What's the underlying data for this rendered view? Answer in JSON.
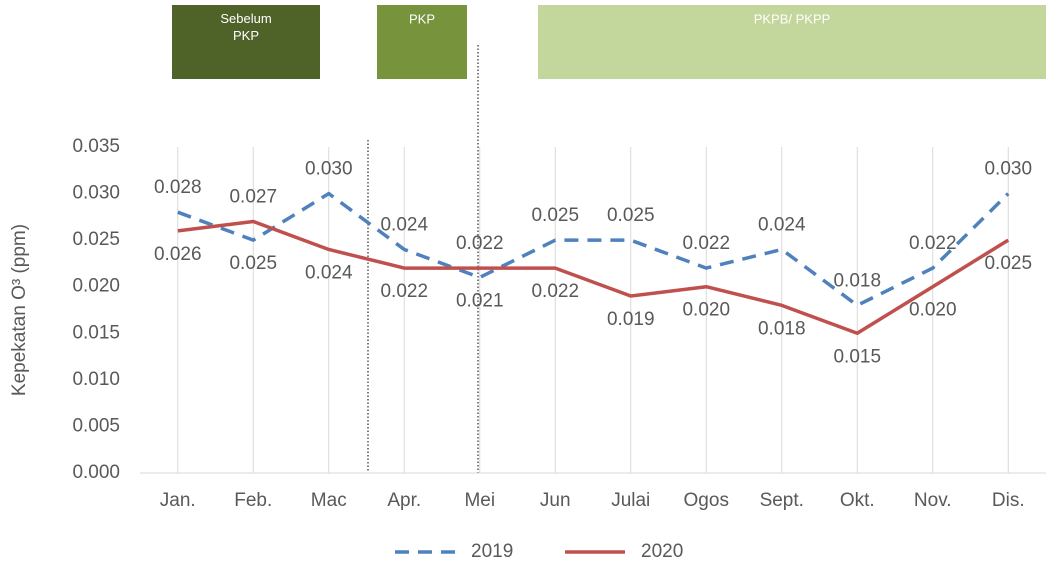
{
  "chart_data": {
    "type": "line",
    "y_axis_label": "Kepekatan O³ (ppm)",
    "annotations": [
      "Sebelum PKP",
      "PKP",
      "PKPB/ PKPP"
    ],
    "categories": [
      "Jan.",
      "Feb.",
      "Mac",
      "Apr.",
      "Mei",
      "Jun",
      "Julai",
      "Ogos",
      "Sept.",
      "Okt.",
      "Nov.",
      "Dis."
    ],
    "series": [
      {
        "name": "2019",
        "color": "#4f81bd",
        "dashed": true,
        "values": [
          0.028,
          0.025,
          0.03,
          0.024,
          0.021,
          0.025,
          0.025,
          0.022,
          0.024,
          0.018,
          0.022,
          0.03
        ],
        "value_labels": [
          "0.028",
          "0.025",
          "0.030",
          "0.024",
          "0.021",
          "0.025",
          "0.025",
          "0.022",
          "0.024",
          "0.018",
          "0.022",
          "0.030"
        ]
      },
      {
        "name": "2020",
        "color": "#c0504d",
        "dashed": false,
        "values": [
          0.026,
          0.027,
          0.024,
          0.022,
          0.022,
          0.022,
          0.019,
          0.02,
          0.018,
          0.015,
          0.02,
          0.025
        ],
        "value_labels": [
          "0.026",
          "0.027",
          "0.024",
          "0.022",
          "0.022",
          "0.022",
          "0.019",
          "0.020",
          "0.018",
          "0.015",
          "0.020",
          "0.025"
        ]
      }
    ],
    "ylim": [
      0,
      0.035
    ],
    "yticks": [
      {
        "value": 0,
        "label": "0.000"
      },
      {
        "value": 0.005,
        "label": "0.005"
      },
      {
        "value": 0.01,
        "label": "0.010"
      },
      {
        "value": 0.015,
        "label": "0.015"
      },
      {
        "value": 0.02,
        "label": "0.020"
      },
      {
        "value": 0.025,
        "label": "0.025"
      },
      {
        "value": 0.03,
        "label": "0.030"
      },
      {
        "value": 0.035,
        "label": "0.035"
      }
    ],
    "grid": "x",
    "legend": "bottom"
  }
}
